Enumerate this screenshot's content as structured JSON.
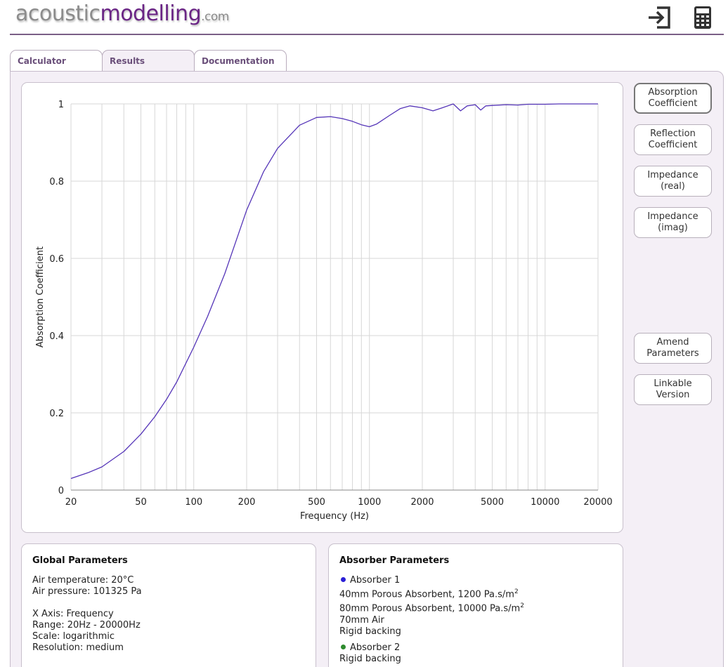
{
  "header": {
    "logo_part1": "acoustic",
    "logo_part2": "modelling",
    "logo_part3": ".com",
    "icons": [
      "login-icon",
      "calculator-icon"
    ]
  },
  "tabs": [
    {
      "label": "Calculator",
      "active": false
    },
    {
      "label": "Results",
      "active": true
    },
    {
      "label": "Documentation",
      "active": false
    }
  ],
  "side_buttons": {
    "absorption": "Absorption\nCoefficient",
    "reflection": "Reflection\nCoefficient",
    "impedance_real": "Impedance\n(real)",
    "impedance_imag": "Impedance\n(imag)",
    "amend": "Amend\nParameters",
    "linkable": "Linkable\nVersion"
  },
  "global_params": {
    "title": "Global Parameters",
    "air_temperature": "Air temperature: 20°C",
    "air_pressure": "Air pressure: 101325 Pa",
    "x_axis": "X Axis: Frequency",
    "range": "Range: 20Hz - 20000Hz",
    "scale": "Scale: logarithmic",
    "resolution": "Resolution: medium"
  },
  "absorber_params": {
    "title": "Absorber Parameters",
    "absorber1": {
      "name": "Absorber 1",
      "color": "#2a1fd6",
      "layer1": "40mm Porous Absorbent, 1200 Pa.s/m",
      "layer1_sup": "2",
      "layer2": "80mm Porous Absorbent, 10000 Pa.s/m",
      "layer2_sup": "2",
      "layer3": "70mm Air",
      "backing": "Rigid backing"
    },
    "absorber2": {
      "name": "Absorber 2",
      "color": "#2e8b2e",
      "backing": "Rigid backing"
    }
  },
  "colors": {
    "accent": "#6a2585",
    "curve": "#5535b8",
    "panel_bg": "#f4eff6"
  },
  "chart_data": {
    "type": "line",
    "xlabel": "Frequency (Hz)",
    "ylabel": "Absorption Coefficient",
    "x_scale": "log",
    "xlim": [
      20,
      20000
    ],
    "ylim": [
      0,
      1
    ],
    "x_ticks": [
      20,
      50,
      100,
      200,
      500,
      1000,
      2000,
      5000,
      10000,
      20000
    ],
    "y_ticks": [
      0,
      0.2,
      0.4,
      0.6,
      0.8,
      1
    ],
    "y_tick_labels": [
      "0",
      "0.2",
      "0.4",
      "0.6",
      "0.8",
      "1"
    ],
    "grid": true,
    "series": [
      {
        "x": [
          20,
          25,
          30,
          40,
          50,
          60,
          70,
          80,
          100,
          120,
          150,
          200,
          250,
          300,
          400,
          500,
          600,
          700,
          800,
          900,
          1000,
          1100,
          1300,
          1500,
          1700,
          2000,
          2300,
          2600,
          3000,
          3300,
          3600,
          4000,
          4300,
          4600,
          5000,
          6000,
          7000,
          8000,
          10000,
          12000,
          15000,
          20000
        ],
        "y": [
          0.03,
          0.045,
          0.06,
          0.1,
          0.145,
          0.19,
          0.235,
          0.28,
          0.37,
          0.45,
          0.56,
          0.725,
          0.825,
          0.885,
          0.945,
          0.965,
          0.967,
          0.962,
          0.955,
          0.946,
          0.941,
          0.948,
          0.97,
          0.988,
          0.995,
          0.99,
          0.982,
          0.99,
          1.0,
          0.982,
          0.995,
          0.998,
          0.984,
          0.995,
          0.996,
          0.998,
          0.997,
          0.999,
          0.999,
          1.0,
          1.0,
          1.0
        ]
      }
    ]
  }
}
